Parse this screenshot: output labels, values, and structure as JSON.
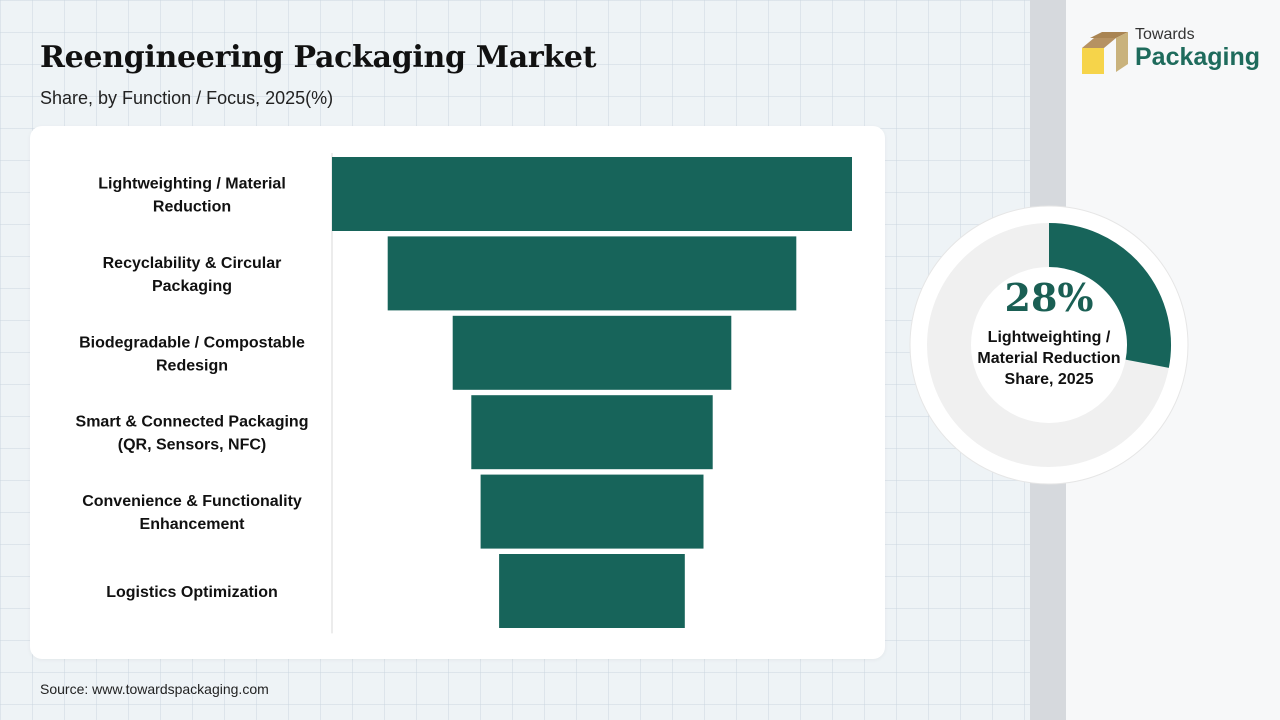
{
  "title": "Reengineering Packaging Market",
  "subtitle": "Share, by Function / Focus, 2025(%)",
  "source": "Source: www.towardspackaging.com",
  "logo": {
    "top_text": "Towards",
    "bottom_text": "Packaging",
    "icon": "box-icon"
  },
  "highlight": {
    "value_text": "28%",
    "label_lines": [
      "Lightweighting /",
      "Material Reduction",
      "Share, 2025"
    ],
    "value": 28
  },
  "colors": {
    "bar": "#17645a",
    "donut_fill": "#17645a",
    "donut_track": "#f0f0f0",
    "logo_box_front": "#f6d44a",
    "logo_box_top": "#a98452"
  },
  "chart_data": {
    "type": "bar",
    "orientation": "horizontal",
    "style": "funnel",
    "title": "Reengineering Packaging Market",
    "subtitle": "Share, by Function / Focus, 2025(%)",
    "categories": [
      [
        "Lightweighting / Material",
        "Reduction"
      ],
      [
        "Recyclability & Circular",
        "Packaging"
      ],
      [
        "Biodegradable / Compostable",
        "Redesign"
      ],
      [
        "Smart & Connected Packaging",
        "(QR, Sensors, NFC)"
      ],
      [
        "Convenience & Functionality",
        "Enhancement"
      ],
      [
        "Logistics Optimization"
      ]
    ],
    "values": [
      28,
      22,
      15,
      13,
      12,
      10
    ],
    "data_labels": false,
    "legend": "none",
    "grid": false
  }
}
